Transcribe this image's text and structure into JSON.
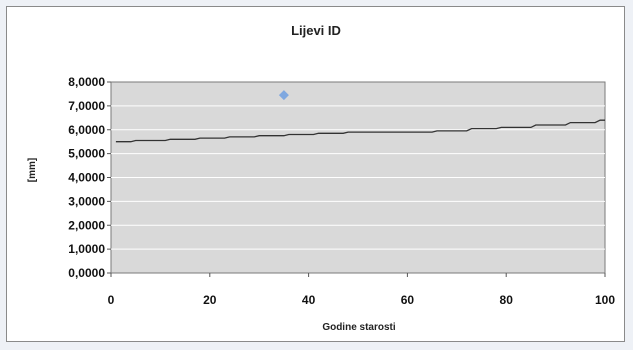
{
  "chart_data": {
    "type": "scatter",
    "title": "Lijevi ID",
    "xlabel": "Godine starosti",
    "ylabel": "[mm]",
    "xlim": [
      0,
      100
    ],
    "ylim": [
      0,
      8
    ],
    "x_ticks": [
      "0",
      "20",
      "40",
      "60",
      "80",
      "100"
    ],
    "y_ticks": [
      "0,0000",
      "1,0000",
      "2,0000",
      "3,0000",
      "4,0000",
      "5,0000",
      "6,0000",
      "7,0000",
      "8,0000"
    ],
    "plot_background": "#d9d9d9",
    "gridlines": "horizontal",
    "series": [
      {
        "kind": "step-line",
        "color": "#333333",
        "x": [
          1,
          4,
          5,
          11,
          12,
          17,
          18,
          23,
          24,
          29,
          30,
          35,
          36,
          41,
          42,
          47,
          48,
          65,
          66,
          72,
          73,
          78,
          79,
          85,
          86,
          92,
          93,
          98,
          99,
          100
        ],
        "y": [
          5.5,
          5.5,
          5.55,
          5.55,
          5.6,
          5.6,
          5.65,
          5.65,
          5.7,
          5.7,
          5.75,
          5.75,
          5.8,
          5.8,
          5.85,
          5.85,
          5.9,
          5.9,
          5.95,
          5.95,
          6.05,
          6.05,
          6.1,
          6.1,
          6.2,
          6.2,
          6.3,
          6.3,
          6.4,
          6.4
        ]
      },
      {
        "kind": "marker",
        "color": "#7fa8e0",
        "x": [
          35
        ],
        "y": [
          7.45
        ]
      }
    ]
  }
}
